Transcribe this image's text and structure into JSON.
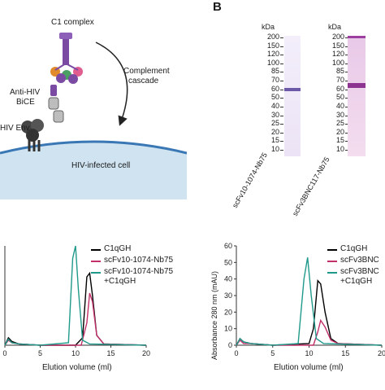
{
  "panel_b": {
    "letter": "B"
  },
  "diagram": {
    "c1_label": "C1 complex",
    "cascade_label_1": "Complement",
    "cascade_label_2": "cascade",
    "bice_label_1": "Anti-HIV",
    "bice_label_2": "BiCE",
    "env_label": "HIV Env",
    "cell_label": "HIV-infected cell",
    "colors": {
      "purple": "#7b4aa3",
      "cell": "#cfe3f0",
      "membrane": "#3a78b5"
    }
  },
  "gel": {
    "kda_label": "kDa",
    "markers": [
      "200",
      "150",
      "120",
      "100",
      "85",
      "70",
      "60",
      "50",
      "40",
      "30",
      "25",
      "20",
      "15",
      "10"
    ],
    "lane_labels": [
      "scFv10-1074-Nb75",
      "scFv3BNC117-Nb75"
    ]
  },
  "chart_data": [
    {
      "type": "line",
      "title": "",
      "xlabel": "Elution volume (ml)",
      "ylabel": "",
      "xlim": [
        0,
        20
      ],
      "x_ticks": [
        "0",
        "5",
        "10",
        "15",
        "20"
      ],
      "series": [
        {
          "name": "C1qGH",
          "color": "#000000",
          "x": [
            0,
            0.5,
            1,
            2,
            5,
            10,
            11,
            11.6,
            12,
            12.4,
            13,
            14,
            20
          ],
          "y": [
            0,
            6,
            3,
            1,
            0,
            0,
            6,
            55,
            58,
            40,
            8,
            1,
            0
          ]
        },
        {
          "name": "scFv10-1074-Nb75",
          "color": "#c2306a",
          "x": [
            0,
            0.5,
            1,
            2,
            5,
            10.8,
            11.6,
            12,
            12.4,
            13,
            14,
            20
          ],
          "y": [
            0,
            4,
            2,
            1,
            0,
            0,
            18,
            42,
            35,
            8,
            1,
            0
          ]
        },
        {
          "name": "scFv10-1074-Nb75\n+C1qGH",
          "color": "#1f9a8a",
          "x": [
            0,
            0.5,
            1,
            2,
            5,
            9,
            9.6,
            10,
            10.4,
            11,
            12,
            20
          ],
          "y": [
            0,
            5,
            2,
            1,
            0,
            2,
            70,
            80,
            45,
            4,
            1,
            0
          ]
        }
      ],
      "legend": "top-right"
    },
    {
      "type": "line",
      "title": "",
      "xlabel": "Elution volume (ml)",
      "ylabel": "Absorbance 280 nm (mAU)",
      "xlim": [
        0,
        20
      ],
      "ylim": [
        0,
        60
      ],
      "x_ticks": [
        "0",
        "5",
        "10",
        "15",
        "20"
      ],
      "y_ticks": [
        "0",
        "10",
        "20",
        "30",
        "40",
        "50",
        "60"
      ],
      "series": [
        {
          "name": "C1qGH",
          "color": "#000000",
          "x": [
            0,
            0.5,
            1,
            2,
            5,
            10,
            10.6,
            11.2,
            11.6,
            12.2,
            13,
            14,
            20
          ],
          "y": [
            0,
            4,
            2,
            1,
            0,
            1,
            10,
            39,
            37,
            20,
            4,
            1,
            0
          ]
        },
        {
          "name": "scFv3BNC",
          "color": "#c2306a",
          "x": [
            0,
            0.5,
            1,
            2,
            5,
            10.6,
            11.2,
            11.6,
            12.2,
            13,
            14,
            20
          ],
          "y": [
            0,
            3,
            1,
            1,
            0,
            0,
            8,
            15,
            11,
            3,
            1,
            0
          ]
        },
        {
          "name": "scFv3BNC\n+C1qGH",
          "color": "#1f9a8a",
          "x": [
            0,
            0.5,
            1,
            2,
            5,
            8.5,
            9.3,
            9.8,
            10.3,
            11,
            12,
            20
          ],
          "y": [
            0,
            4,
            2,
            1,
            0,
            1,
            40,
            53,
            30,
            4,
            1,
            0
          ]
        }
      ],
      "legend": "top-right"
    }
  ]
}
